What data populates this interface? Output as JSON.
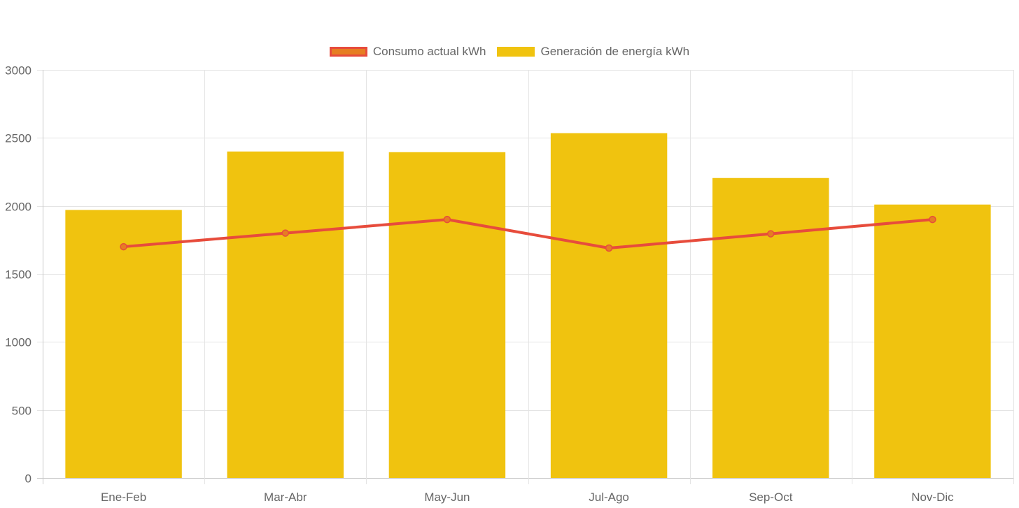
{
  "chart_data": {
    "type": "bar",
    "categories": [
      "Ene-Feb",
      "Mar-Abr",
      "May-Jun",
      "Jul-Ago",
      "Sep-Oct",
      "Nov-Dic"
    ],
    "series": [
      {
        "name": "Generación de energía kWh",
        "type": "bar",
        "values": [
          1970,
          2400,
          2395,
          2535,
          2205,
          2010
        ],
        "color": "#f0c30f"
      },
      {
        "name": "Consumo actual kWh",
        "type": "line",
        "values": [
          1700,
          1800,
          1900,
          1690,
          1795,
          1900
        ],
        "color": "#e74c3c",
        "fill_color": "#e67e22"
      }
    ],
    "ylim": [
      0,
      3000
    ],
    "yticks": [
      0,
      500,
      1000,
      1500,
      2000,
      2500,
      3000
    ],
    "grid": true,
    "legend_position": "top-center"
  },
  "legend": {
    "line_label": "Consumo actual kWh",
    "bar_label": "Generación de energía kWh"
  }
}
